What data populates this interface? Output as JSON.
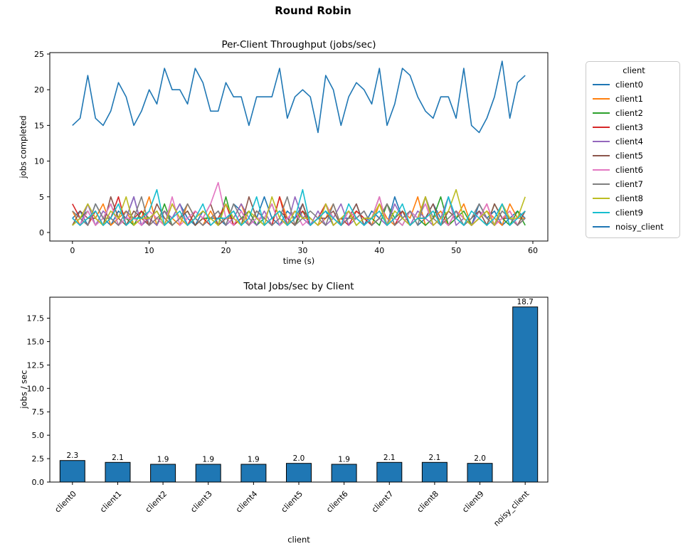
{
  "figure": {
    "suptitle": "Round Robin",
    "background": "#ffffff",
    "text_color": "#000000"
  },
  "chart_data": [
    {
      "type": "line",
      "title": "Per-Client Throughput (jobs/sec)",
      "xlabel": "time (s)",
      "ylabel": "jobs completed",
      "legend_title": "client",
      "legend_position": "right-outside",
      "grid": false,
      "xticks": [
        0,
        10,
        20,
        30,
        40,
        50,
        60
      ],
      "yticks": [
        0,
        5,
        10,
        15,
        20,
        25
      ],
      "xlim": [
        -2.95,
        61.95
      ],
      "ylim": [
        -1.2,
        25.2
      ],
      "x_range": [
        0,
        59
      ],
      "series": [
        {
          "name": "client0",
          "color": "#1f77b4",
          "values": [
            2,
            3,
            1,
            4,
            2,
            1,
            3,
            2,
            5,
            1,
            2,
            3,
            1,
            2,
            4,
            2,
            1,
            3,
            2,
            2,
            1,
            4,
            3,
            1,
            2,
            5,
            2,
            1,
            3,
            2,
            4,
            1,
            2,
            3,
            1,
            2,
            2,
            4,
            1,
            3,
            2,
            1,
            5,
            2,
            3,
            1,
            2,
            4,
            2,
            1,
            3,
            2,
            1,
            4,
            2,
            3,
            1,
            2,
            3,
            2
          ]
        },
        {
          "name": "client1",
          "color": "#ff7f0e",
          "values": [
            3,
            1,
            2,
            2,
            4,
            1,
            2,
            3,
            1,
            2,
            5,
            1,
            3,
            2,
            1,
            4,
            2,
            1,
            3,
            1,
            2,
            2,
            4,
            1,
            3,
            2,
            1,
            5,
            2,
            1,
            3,
            2,
            1,
            2,
            4,
            1,
            2,
            3,
            2,
            1,
            4,
            2,
            1,
            3,
            2,
            5,
            1,
            2,
            3,
            1,
            2,
            4,
            1,
            2,
            3,
            2,
            1,
            4,
            2,
            2
          ]
        },
        {
          "name": "client2",
          "color": "#2ca02c",
          "values": [
            1,
            2,
            3,
            1,
            2,
            4,
            1,
            2,
            1,
            3,
            2,
            1,
            4,
            1,
            2,
            3,
            1,
            2,
            2,
            1,
            5,
            1,
            2,
            3,
            1,
            2,
            4,
            1,
            2,
            1,
            3,
            2,
            1,
            4,
            2,
            1,
            3,
            1,
            2,
            2,
            1,
            4,
            2,
            1,
            3,
            2,
            1,
            2,
            5,
            1,
            2,
            3,
            1,
            2,
            1,
            4,
            2,
            1,
            3,
            1
          ]
        },
        {
          "name": "client3",
          "color": "#d62728",
          "values": [
            4,
            2,
            1,
            3,
            1,
            2,
            5,
            1,
            2,
            3,
            1,
            2,
            1,
            4,
            2,
            1,
            3,
            2,
            1,
            2,
            4,
            1,
            2,
            1,
            3,
            2,
            1,
            5,
            1,
            2,
            3,
            1,
            2,
            4,
            1,
            2,
            1,
            3,
            2,
            1,
            2,
            4,
            1,
            3,
            1,
            2,
            5,
            1,
            2,
            1,
            3,
            2,
            1,
            2,
            4,
            1,
            2,
            3,
            1,
            2
          ]
        },
        {
          "name": "client4",
          "color": "#9467bd",
          "values": [
            2,
            1,
            4,
            1,
            3,
            2,
            1,
            2,
            5,
            1,
            2,
            1,
            3,
            2,
            4,
            1,
            2,
            1,
            2,
            3,
            1,
            2,
            4,
            2,
            1,
            3,
            1,
            2,
            1,
            5,
            2,
            1,
            3,
            1,
            2,
            4,
            1,
            2,
            3,
            1,
            2,
            1,
            4,
            2,
            1,
            3,
            2,
            1,
            2,
            5,
            1,
            2,
            1,
            3,
            2,
            1,
            4,
            1,
            2,
            3
          ]
        },
        {
          "name": "client5",
          "color": "#8c564b",
          "values": [
            1,
            3,
            2,
            2,
            1,
            5,
            2,
            1,
            3,
            2,
            1,
            4,
            2,
            1,
            2,
            3,
            1,
            2,
            4,
            1,
            2,
            3,
            1,
            5,
            2,
            1,
            2,
            3,
            2,
            1,
            4,
            1,
            2,
            2,
            3,
            1,
            2,
            4,
            1,
            2,
            5,
            1,
            2,
            3,
            1,
            2,
            2,
            4,
            1,
            3,
            2,
            1,
            2,
            3,
            1,
            4,
            2,
            2,
            1,
            3
          ]
        },
        {
          "name": "client6",
          "color": "#e377c2",
          "values": [
            2,
            1,
            3,
            1,
            2,
            4,
            1,
            2,
            2,
            1,
            3,
            2,
            1,
            5,
            1,
            2,
            3,
            2,
            4,
            7,
            2,
            1,
            3,
            1,
            2,
            2,
            4,
            1,
            2,
            3,
            1,
            2,
            1,
            4,
            2,
            1,
            3,
            2,
            1,
            2,
            5,
            1,
            2,
            1,
            3,
            2,
            4,
            1,
            2,
            1,
            3,
            2,
            1,
            2,
            4,
            1,
            2,
            3,
            1,
            2
          ]
        },
        {
          "name": "client7",
          "color": "#7f7f7f",
          "values": [
            3,
            2,
            1,
            4,
            2,
            2,
            1,
            3,
            2,
            5,
            1,
            2,
            3,
            1,
            2,
            4,
            2,
            1,
            2,
            3,
            1,
            4,
            2,
            1,
            3,
            2,
            1,
            2,
            5,
            1,
            2,
            3,
            2,
            1,
            4,
            1,
            2,
            2,
            3,
            1,
            2,
            4,
            1,
            2,
            3,
            1,
            5,
            2,
            1,
            2,
            3,
            1,
            2,
            4,
            2,
            1,
            3,
            2,
            1,
            2
          ]
        },
        {
          "name": "client8",
          "color": "#bcbd22",
          "values": [
            1,
            2,
            4,
            2,
            1,
            3,
            2,
            5,
            1,
            2,
            2,
            3,
            1,
            4,
            2,
            1,
            2,
            3,
            2,
            1,
            4,
            2,
            1,
            3,
            2,
            1,
            5,
            2,
            1,
            3,
            2,
            2,
            1,
            4,
            1,
            2,
            3,
            1,
            2,
            2,
            4,
            1,
            3,
            2,
            1,
            2,
            5,
            1,
            2,
            3,
            6,
            2,
            1,
            2,
            3,
            1,
            4,
            2,
            2,
            5
          ]
        },
        {
          "name": "client9",
          "color": "#17becf",
          "values": [
            2,
            1,
            2,
            3,
            1,
            2,
            4,
            1,
            2,
            2,
            3,
            6,
            1,
            2,
            3,
            1,
            2,
            4,
            1,
            2,
            2,
            3,
            1,
            2,
            5,
            1,
            2,
            3,
            1,
            2,
            6,
            1,
            2,
            3,
            2,
            1,
            4,
            2,
            1,
            2,
            3,
            1,
            2,
            4,
            1,
            2,
            2,
            3,
            1,
            5,
            2,
            1,
            3,
            2,
            1,
            2,
            4,
            1,
            2,
            3
          ]
        },
        {
          "name": "noisy_client",
          "color": "#1f77b4",
          "values": [
            15,
            16,
            22,
            16,
            15,
            17,
            21,
            19,
            15,
            17,
            20,
            18,
            23,
            20,
            20,
            18,
            23,
            21,
            17,
            17,
            21,
            19,
            19,
            15,
            19,
            19,
            19,
            23,
            16,
            19,
            20,
            19,
            14,
            22,
            20,
            15,
            19,
            21,
            20,
            18,
            23,
            15,
            18,
            23,
            22,
            19,
            17,
            16,
            19,
            19,
            16,
            23,
            15,
            14,
            16,
            19,
            24,
            16,
            21,
            22
          ]
        }
      ]
    },
    {
      "type": "bar",
      "title": "Total Jobs/sec by Client",
      "xlabel": "client",
      "ylabel": "jobs / sec",
      "grid": false,
      "categories": [
        "client0",
        "client1",
        "client2",
        "client3",
        "client4",
        "client5",
        "client6",
        "client7",
        "client8",
        "client9",
        "noisy_client"
      ],
      "values": [
        2.3,
        2.1,
        1.9,
        1.9,
        1.9,
        2.0,
        1.9,
        2.1,
        2.1,
        2.0,
        18.7
      ],
      "value_labels": [
        "2.3",
        "2.1",
        "1.9",
        "1.9",
        "1.9",
        "2.0",
        "1.9",
        "2.1",
        "2.1",
        "2.0",
        "18.7"
      ],
      "yticks": [
        0.0,
        2.5,
        5.0,
        7.5,
        10.0,
        12.5,
        15.0,
        17.5
      ],
      "xlim": [
        -0.5,
        10.5
      ],
      "ylim": [
        0,
        19.74
      ],
      "bar_width": 0.55,
      "bar_color": "#1f77b4",
      "bar_edge": "#000000",
      "tick_label_rotation": 45
    }
  ]
}
